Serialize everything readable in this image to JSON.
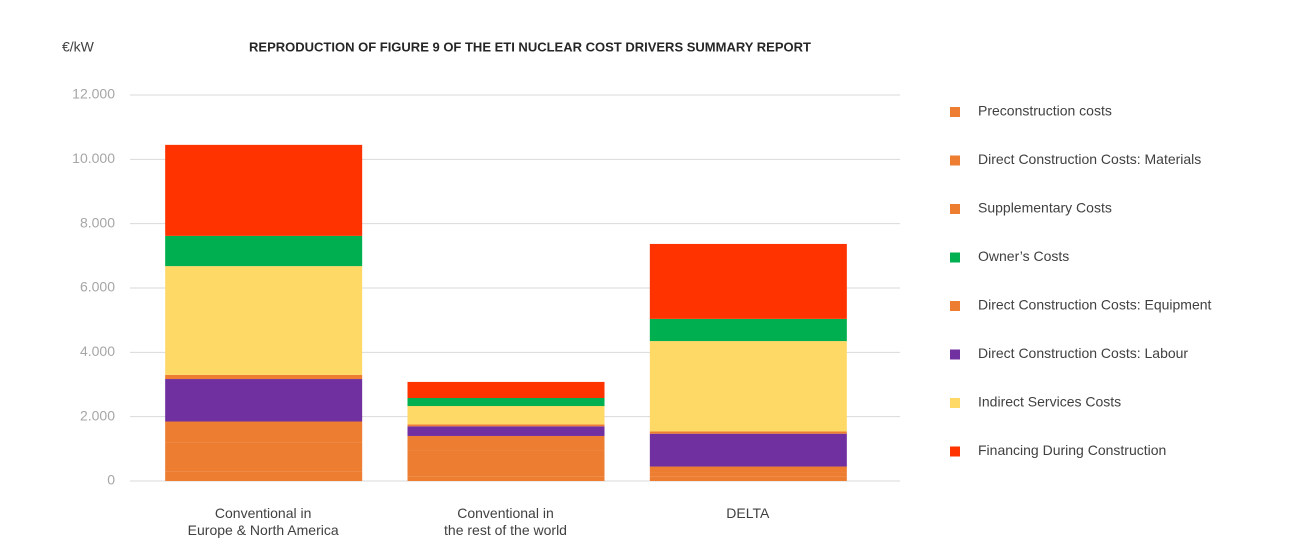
{
  "chart_data": {
    "type": "stacked_bar",
    "title": "REPRODUCTION OF FIGURE 9 OF THE ETI NUCLEAR COST DRIVERS SUMMARY REPORT",
    "y_label": "€/kW",
    "categories": [
      "Conventional in\nEurope & North America",
      "Conventional in\nthe rest of the world",
      "DELTA"
    ],
    "series": [
      {
        "name": "Preconstruction costs",
        "color": "#ED7D31",
        "values": [
          300,
          150,
          150
        ]
      },
      {
        "name": "Direct Construction Costs: Materials",
        "color": "#ED7D31",
        "values": [
          900,
          800,
          100
        ]
      },
      {
        "name": "Supplementary Costs",
        "color": "#ED7D31",
        "values": [
          650,
          450,
          200
        ]
      },
      {
        "name": "Owner’s Costs",
        "color": "#00B050",
        "values": [
          940,
          250,
          690
        ]
      },
      {
        "name": "Direct Construction Costs: Equipment",
        "color": "#ED7D31",
        "values": [
          130,
          60,
          70
        ]
      },
      {
        "name": "Direct Construction Costs: Labour",
        "color": "#7030A0",
        "values": [
          1320,
          300,
          1020
        ]
      },
      {
        "name": "Indirect Services Costs",
        "color": "#FFD966",
        "values": [
          3380,
          570,
          2810
        ]
      },
      {
        "name": "Financing During Construction",
        "color": "#FF3300",
        "values": [
          2830,
          500,
          2330
        ]
      }
    ],
    "ylim": [
      0,
      12000
    ],
    "yticks": [
      0,
      {
        "value": 2000,
        "label": "2.000"
      },
      {
        "value": 4000,
        "label": "4.000"
      },
      {
        "value": 6000,
        "label": "6.000"
      },
      {
        "value": 8000,
        "label": "8.000"
      },
      {
        "value": 10000,
        "label": "10.000"
      },
      {
        "value": 12000,
        "label": "12.000"
      }
    ],
    "grid": true,
    "legend": "right"
  }
}
